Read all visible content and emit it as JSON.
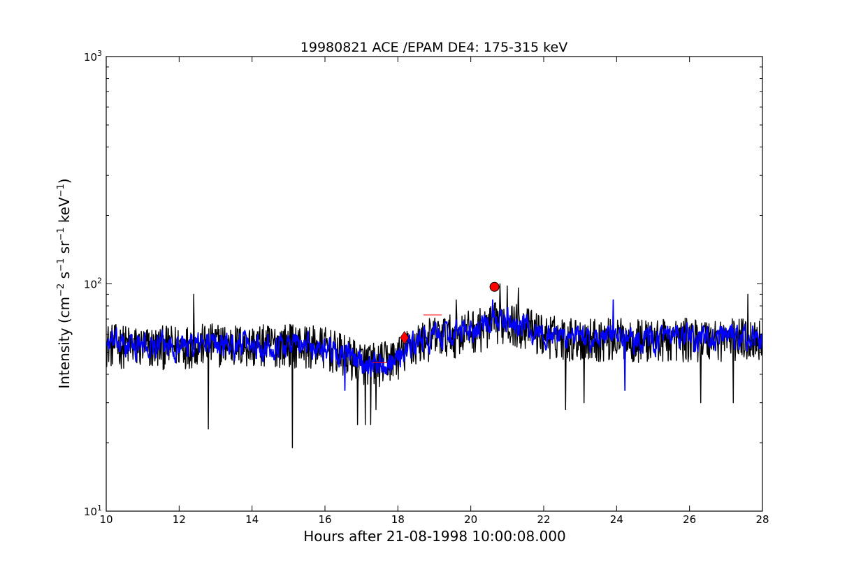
{
  "chart_data": {
    "type": "line",
    "title": "19980821 ACE /EPAM DE4: 175-315 keV",
    "xlabel": "Hours after 21-08-1998 10:00:08.000",
    "ylabel": {
      "text": "Intensity (cm",
      "exp1": "−2",
      "s": " s",
      "exp2": "−1",
      "sr": " sr",
      "exp3": "−1",
      "kev": " keV",
      "exp4": "−1",
      "close": ")"
    },
    "xlim": [
      10,
      28
    ],
    "ylim": [
      10,
      1000
    ],
    "yscale": "log",
    "x_ticks": [
      10,
      12,
      14,
      16,
      18,
      20,
      22,
      24,
      26,
      28
    ],
    "x_tick_labels": [
      "10",
      "12",
      "14",
      "16",
      "18",
      "20",
      "22",
      "24",
      "26",
      "28"
    ],
    "y_ticks": [
      {
        "value": 10,
        "base": "10",
        "exp": "1"
      },
      {
        "value": 100,
        "base": "10",
        "exp": "2"
      },
      {
        "value": 1000,
        "base": "10",
        "exp": "3"
      }
    ],
    "grid": false,
    "series": [
      {
        "role": "raw",
        "color": "#000000",
        "profile": [
          [
            10,
            55
          ],
          [
            11,
            53
          ],
          [
            12,
            54
          ],
          [
            13,
            55
          ],
          [
            14,
            54
          ],
          [
            15,
            55
          ],
          [
            16,
            53
          ],
          [
            16.5,
            49
          ],
          [
            17,
            46
          ],
          [
            17.5,
            45
          ],
          [
            18,
            48
          ],
          [
            18.5,
            55
          ],
          [
            19,
            59
          ],
          [
            19.5,
            60
          ],
          [
            20,
            63
          ],
          [
            20.5,
            65
          ],
          [
            20.8,
            70
          ],
          [
            21,
            69
          ],
          [
            21.5,
            65
          ],
          [
            22,
            60
          ],
          [
            23,
            58
          ],
          [
            24,
            58
          ],
          [
            25,
            57
          ],
          [
            26,
            58
          ],
          [
            27,
            58
          ],
          [
            28,
            58
          ]
        ],
        "noise_fraction": 0.22,
        "dips": [
          [
            12.8,
            23
          ],
          [
            15.1,
            19
          ],
          [
            16.9,
            24
          ],
          [
            17.1,
            24
          ],
          [
            17.25,
            24
          ],
          [
            17.4,
            28
          ],
          [
            22.6,
            28
          ],
          [
            23.1,
            30
          ],
          [
            26.3,
            30
          ],
          [
            27.2,
            30
          ]
        ],
        "peaks": [
          [
            12.4,
            90
          ],
          [
            20.8,
            100
          ],
          [
            21.0,
            98
          ],
          [
            21.3,
            96
          ],
          [
            27.6,
            90
          ],
          [
            19.6,
            85
          ]
        ]
      },
      {
        "role": "smoothed",
        "color": "#0000ff",
        "profile": [
          [
            10,
            55
          ],
          [
            11,
            53
          ],
          [
            12,
            54
          ],
          [
            13,
            55
          ],
          [
            14,
            54
          ],
          [
            15,
            55
          ],
          [
            16,
            53
          ],
          [
            16.5,
            49
          ],
          [
            17,
            46
          ],
          [
            17.5,
            45
          ],
          [
            18,
            48
          ],
          [
            18.5,
            55
          ],
          [
            19,
            59
          ],
          [
            19.5,
            60
          ],
          [
            20,
            63
          ],
          [
            20.5,
            65
          ],
          [
            20.8,
            70
          ],
          [
            21,
            69
          ],
          [
            21.5,
            65
          ],
          [
            22,
            60
          ],
          [
            23,
            58
          ],
          [
            24,
            58
          ],
          [
            25,
            57
          ],
          [
            26,
            58
          ],
          [
            27,
            58
          ],
          [
            28,
            58
          ]
        ],
        "noise_fraction": 0.1,
        "dips": [
          [
            16.55,
            34
          ],
          [
            24.22,
            34
          ]
        ],
        "peaks": [
          [
            20.6,
            85
          ],
          [
            23.9,
            85
          ]
        ]
      }
    ],
    "markers": [
      {
        "shape": "circle",
        "x": 20.65,
        "y": 97,
        "color": "#ff0000"
      },
      {
        "shape": "diamond",
        "x": 18.18,
        "y": 58,
        "color": "#ff0000"
      }
    ],
    "thin_marks": [
      {
        "x1": 17.3,
        "x2": 17.7,
        "y": 45,
        "color": "#ff0000"
      },
      {
        "x1": 18.7,
        "x2": 19.2,
        "y": 73,
        "color": "#ff0000"
      }
    ]
  }
}
